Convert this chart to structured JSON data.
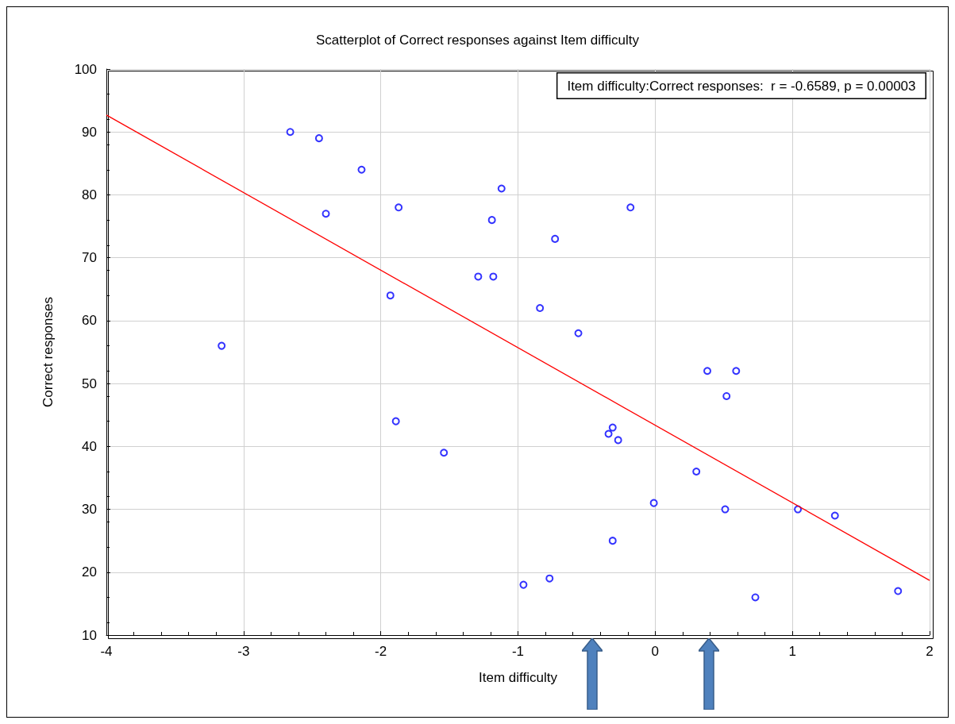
{
  "chart_data": {
    "type": "scatter",
    "title": "Scatterplot of Correct responses against Item difficulty",
    "xlabel": "Item difficulty",
    "ylabel": "Correct responses",
    "xlim": [
      -4,
      2
    ],
    "xticks": [
      -4,
      -3,
      -2,
      -1,
      0,
      1,
      2
    ],
    "ylim": [
      10,
      100
    ],
    "yticks": [
      10,
      20,
      30,
      40,
      50,
      60,
      70,
      80,
      90,
      100
    ],
    "grid": true,
    "marker": "circle",
    "annotations": [
      "Item difficulty:Correct responses:  r = -0.6589, p = 0.00003"
    ],
    "series": [
      {
        "color": "#0000ff",
        "x": [
          -3.16,
          -2.66,
          -2.45,
          -2.14,
          -2.4,
          -1.93,
          -1.87,
          -1.89,
          -1.54,
          -1.12,
          -1.19,
          -1.29,
          -1.18,
          -0.96,
          -0.84,
          -0.77,
          -0.73,
          -0.56,
          -0.18,
          -0.34,
          -0.31,
          -0.27,
          -0.31,
          -0.01,
          0.3,
          0.38,
          0.59,
          0.52,
          0.51,
          0.73,
          1.04,
          1.31,
          1.77
        ],
        "values": [
          56,
          90,
          89,
          84,
          77,
          64,
          78,
          44,
          39,
          81,
          76,
          67,
          67,
          18,
          62,
          19,
          73,
          58,
          78,
          42,
          43,
          41,
          25,
          31,
          36,
          52,
          52,
          48,
          30,
          16,
          30,
          29,
          17
        ]
      },
      {
        "type": "line",
        "color": "#ff0000",
        "marker": "none",
        "line_style": "solid",
        "x": [
          -4,
          2
        ],
        "values": [
          92.7,
          18.7
        ]
      }
    ]
  }
}
